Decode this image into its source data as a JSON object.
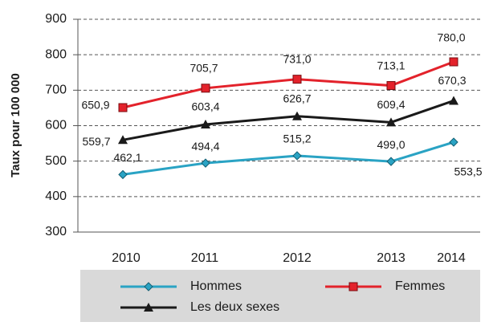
{
  "chart_data": {
    "type": "line",
    "y_label": "Taux pour 100 000",
    "categories": [
      "2010",
      "2011",
      "2012",
      "2013",
      "2014"
    ],
    "series": [
      {
        "name": "Hommes",
        "color": "#2aa3c4",
        "marker": "diamond",
        "values": [
          462.1,
          494.4,
          515.2,
          499.0,
          553.5
        ],
        "value_labels": [
          "462,1",
          "494,4",
          "515,2",
          "499,0",
          "553,5"
        ]
      },
      {
        "name": "Femmes",
        "color": "#e3222b",
        "marker": "square",
        "values": [
          650.9,
          705.7,
          731.0,
          713.1,
          780.0
        ],
        "value_labels": [
          "650,9",
          "705,7",
          "731,0",
          "713,1",
          "780,0"
        ]
      },
      {
        "name": "Les deux sexes",
        "color": "#1a1a1a",
        "marker": "triangle",
        "values": [
          559.7,
          603.4,
          626.7,
          609.4,
          670.3
        ],
        "value_labels": [
          "559,7",
          "603,4",
          "626,7",
          "609,4",
          "670,3"
        ]
      }
    ],
    "ylim": [
      300,
      900
    ],
    "yticks": [
      300,
      400,
      500,
      600,
      700,
      800,
      900
    ],
    "grid": true,
    "legend": "bottom"
  }
}
